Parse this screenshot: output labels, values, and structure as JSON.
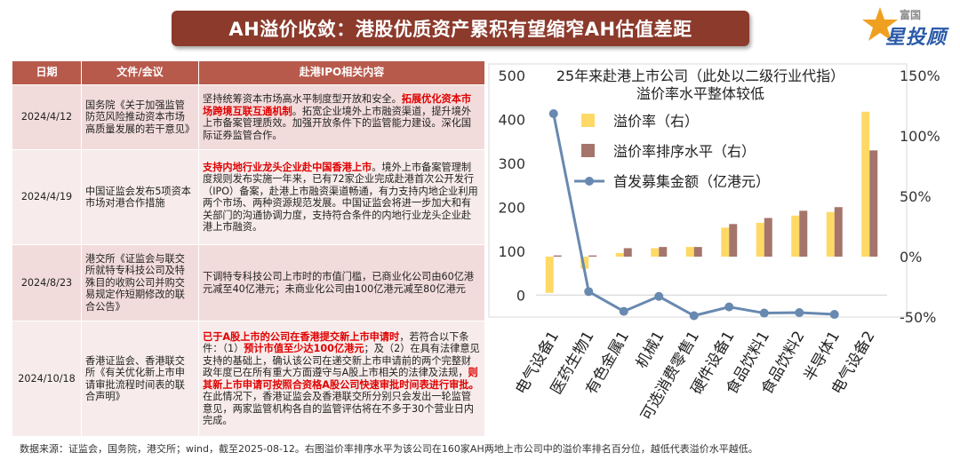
{
  "title": "AH溢价收敛：港股优质资产累积有望缩窄AH估值差距",
  "logo": {
    "top_text": "富国",
    "main_text": "星投顾"
  },
  "table": {
    "headers": [
      "日期",
      "文件/会议",
      "赴港IPO相关内容"
    ],
    "rows": [
      {
        "date": "2024/4/12",
        "doc": "国务院《关于加强监管防范风险推动资本市场高质量发展的若干意见》",
        "content": [
          {
            "t": "坚持统筹资本市场高水平制度型开放和安全。",
            "hl": false
          },
          {
            "t": "拓展优化资本市场跨境互联互通机制",
            "hl": true
          },
          {
            "t": "。拓宽企业境外上市融资渠道，提升境外上市备案管理质效。加强开放条件下的监管能力建设。深化国际证券监管合作。",
            "hl": false
          }
        ]
      },
      {
        "date": "2024/4/19",
        "doc": "中国证监会发布5项资本市场对港合作措施",
        "content": [
          {
            "t": "支持内地行业龙头企业赴中国香港上市",
            "hl": true
          },
          {
            "t": "。境外上市备案管理制度规则发布实施一年来，已有72家企业完成赴港首次公开发行（IPO）备案，赴港上市融资渠道畅通，有力支持内地企业利用两个市场、两种资源规范发展。中国证监会将进一步加大和有关部门的沟通协调力度，支持符合条件的内地行业龙头企业赴港上市融资。",
            "hl": false
          }
        ]
      },
      {
        "date": "2024/8/23",
        "doc": "港交所《证监会与联交所就特专科技公司及特殊目的收购公司并购交易规定作短期修改的联合公告》",
        "content": [
          {
            "t": "下调特专科技公司上市时的市值门槛，已商业化公司由60亿港元减至40亿港元；未商业化公司由100亿港元减至80亿港元",
            "hl": false
          }
        ]
      },
      {
        "date": "2024/10/18",
        "doc": "香港证监会、香港联交所《有关优化新上市申请审批流程时间表的联合声明》",
        "content": [
          {
            "t": "已于A股上市的公司在香港提交新上市申请时",
            "hl": true
          },
          {
            "t": "，若符合以下条件：（1）",
            "hl": false
          },
          {
            "t": "预计市值至少达100亿港元",
            "hl": true
          },
          {
            "t": "；及（2）在具有法律意见支持的基础上，确认该公司在递交新上市申请前的两个完整财政年度已在所有重大方面遵守与A股上市相关的法律及法规，",
            "hl": false
          },
          {
            "t": "则其新上市申请可按照合资格A股公司快速审批时间表进行审批。",
            "hl": true
          },
          {
            "t": "在此情况下，香港证监会及香港联交所分别只会发出一轮监管意见，两家监管机构各自的监管评估将在不多于30个营业日内完成。",
            "hl": false
          }
        ]
      }
    ]
  },
  "chart_data": {
    "type": "bar+line",
    "title_line1": "25年来赴港上市公司（此处以二级行业代指）",
    "title_line2": "溢价率水平整体较低",
    "categories": [
      "电气设备1",
      "医药生物1",
      "有色金属1",
      "机械1",
      "可选消费零售1",
      "硬件设备1",
      "食品饮料1",
      "食品饮料2",
      "半导体1",
      "电气设备2"
    ],
    "series": [
      {
        "name": "溢价率（右）",
        "type": "bar",
        "axis": "right",
        "color": "#ffd966",
        "values": [
          -30,
          -10,
          3,
          7,
          8,
          24,
          28,
          34,
          37,
          120
        ]
      },
      {
        "name": "溢价率排序水平（右）",
        "type": "bar",
        "axis": "right",
        "color": "#a5756c",
        "values": [
          1,
          1,
          7,
          8,
          8,
          27,
          32,
          38,
          41,
          88
        ]
      },
      {
        "name": "首发募集金额（亿港元）",
        "type": "line",
        "axis": "left",
        "color": "#6889b0",
        "values": [
          413,
          8,
          -37,
          -3,
          -47,
          -27,
          -41,
          -40,
          -44,
          null
        ]
      }
    ],
    "left_axis": {
      "min": -50,
      "max": 500,
      "ticks": [
        0,
        100,
        200,
        300,
        400,
        500
      ]
    },
    "right_axis": {
      "min": -50,
      "max": 150,
      "ticks": [
        "-50%",
        "0%",
        "50%",
        "100%",
        "150%"
      ]
    },
    "legend_position": "top-left"
  },
  "footer": "数据来源：证监会，国务院，港交所；wind，截至2025-08-12。右图溢价率排序水平为该公司在160家AH两地上市公司中的溢价率排名百分位，越低代表溢价水平越低。"
}
